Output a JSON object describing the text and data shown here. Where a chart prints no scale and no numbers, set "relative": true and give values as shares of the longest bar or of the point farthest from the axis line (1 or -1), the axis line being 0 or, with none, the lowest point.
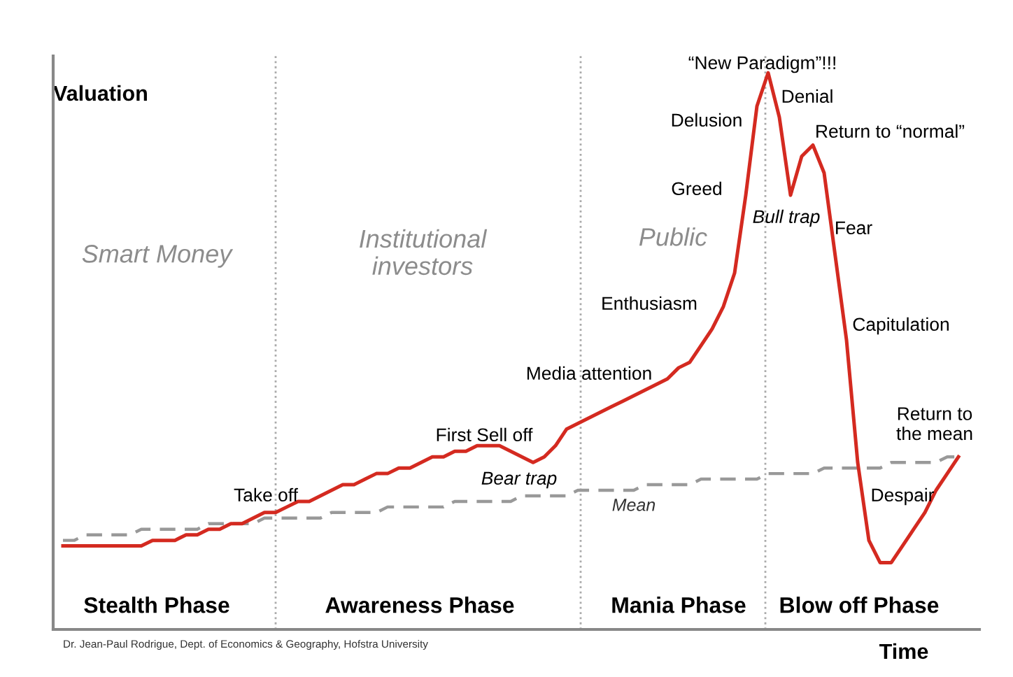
{
  "chart_data": {
    "type": "line",
    "relative": true,
    "xlabel": "Time",
    "ylabel": "Valuation",
    "categories": [
      null,
      null,
      null,
      null,
      null,
      null,
      null,
      null,
      null,
      null,
      null,
      null,
      null,
      null,
      null,
      null,
      null,
      null,
      null,
      null,
      null,
      null,
      null,
      null,
      null,
      null,
      null,
      null,
      null,
      null,
      null,
      null,
      null,
      null,
      null,
      null,
      null,
      null,
      null,
      null,
      null,
      null,
      null,
      null,
      null,
      null,
      null,
      null,
      null,
      null,
      null,
      null,
      null,
      null,
      null,
      null,
      null,
      null,
      null,
      null,
      null,
      null,
      null,
      null,
      null,
      null,
      null,
      null,
      null,
      null,
      null,
      null,
      null,
      null,
      null,
      null,
      null,
      null,
      null,
      null,
      null
    ],
    "series": [
      {
        "color": "#d42a20",
        "line_style": "solid",
        "values": [
          0.15,
          0.15,
          0.15,
          0.15,
          0.15,
          0.15,
          0.15,
          0.15,
          0.16,
          0.16,
          0.16,
          0.17,
          0.17,
          0.18,
          0.18,
          0.19,
          0.19,
          0.2,
          0.21,
          0.21,
          0.22,
          0.23,
          0.23,
          0.24,
          0.25,
          0.26,
          0.26,
          0.27,
          0.28,
          0.28,
          0.29,
          0.29,
          0.3,
          0.31,
          0.31,
          0.32,
          0.32,
          0.33,
          0.33,
          0.33,
          0.32,
          0.31,
          0.3,
          0.31,
          0.33,
          0.36,
          0.37,
          0.38,
          0.39,
          0.4,
          0.41,
          0.42,
          0.43,
          0.44,
          0.45,
          0.47,
          0.48,
          0.51,
          0.54,
          0.58,
          0.64,
          0.78,
          0.94,
          1,
          0.92,
          0.78,
          0.85,
          0.87,
          0.82,
          0.67,
          0.52,
          0.3,
          0.16,
          0.12,
          0.12,
          0.15,
          0.18,
          0.21,
          0.25,
          0.28,
          0.31
        ]
      },
      {
        "name": "Mean",
        "color": "#999999",
        "line_style": "dashed",
        "values": [
          0.16,
          0.16,
          0.17,
          0.17,
          0.17,
          0.17,
          0.17,
          0.18,
          0.18,
          0.18,
          0.18,
          0.18,
          0.18,
          0.19,
          0.19,
          0.19,
          0.19,
          0.19,
          0.2,
          0.2,
          0.2,
          0.2,
          0.2,
          0.2,
          0.21,
          0.21,
          0.21,
          0.21,
          0.21,
          0.22,
          0.22,
          0.22,
          0.22,
          0.22,
          0.22,
          0.23,
          0.23,
          0.23,
          0.23,
          0.23,
          0.23,
          0.24,
          0.24,
          0.24,
          0.24,
          0.24,
          0.25,
          0.25,
          0.25,
          0.25,
          0.25,
          0.25,
          0.26,
          0.26,
          0.26,
          0.26,
          0.26,
          0.27,
          0.27,
          0.27,
          0.27,
          0.27,
          0.27,
          0.28,
          0.28,
          0.28,
          0.28,
          0.28,
          0.29,
          0.29,
          0.29,
          0.29,
          0.29,
          0.29,
          0.3,
          0.3,
          0.3,
          0.3,
          0.3,
          0.31,
          0.31
        ]
      }
    ],
    "annotations": [
      "Smart Money",
      "Institutional\ninvestors",
      "Public",
      "Stealth Phase",
      "Awareness Phase",
      "Mania Phase",
      "Blow off Phase",
      "Take off",
      "First Sell off",
      "Bear trap",
      "Media attention",
      "Enthusiasm",
      "Greed",
      "Delusion",
      "“New Paradigm”!!!",
      "Denial",
      "Return to “normal”",
      "Bull trap",
      "Fear",
      "Capitulation",
      "Despair",
      "Return to\nthe mean",
      "Dr. Jean-Paul Rodrigue, Dept. of Economics & Geography, Hofstra University"
    ]
  }
}
